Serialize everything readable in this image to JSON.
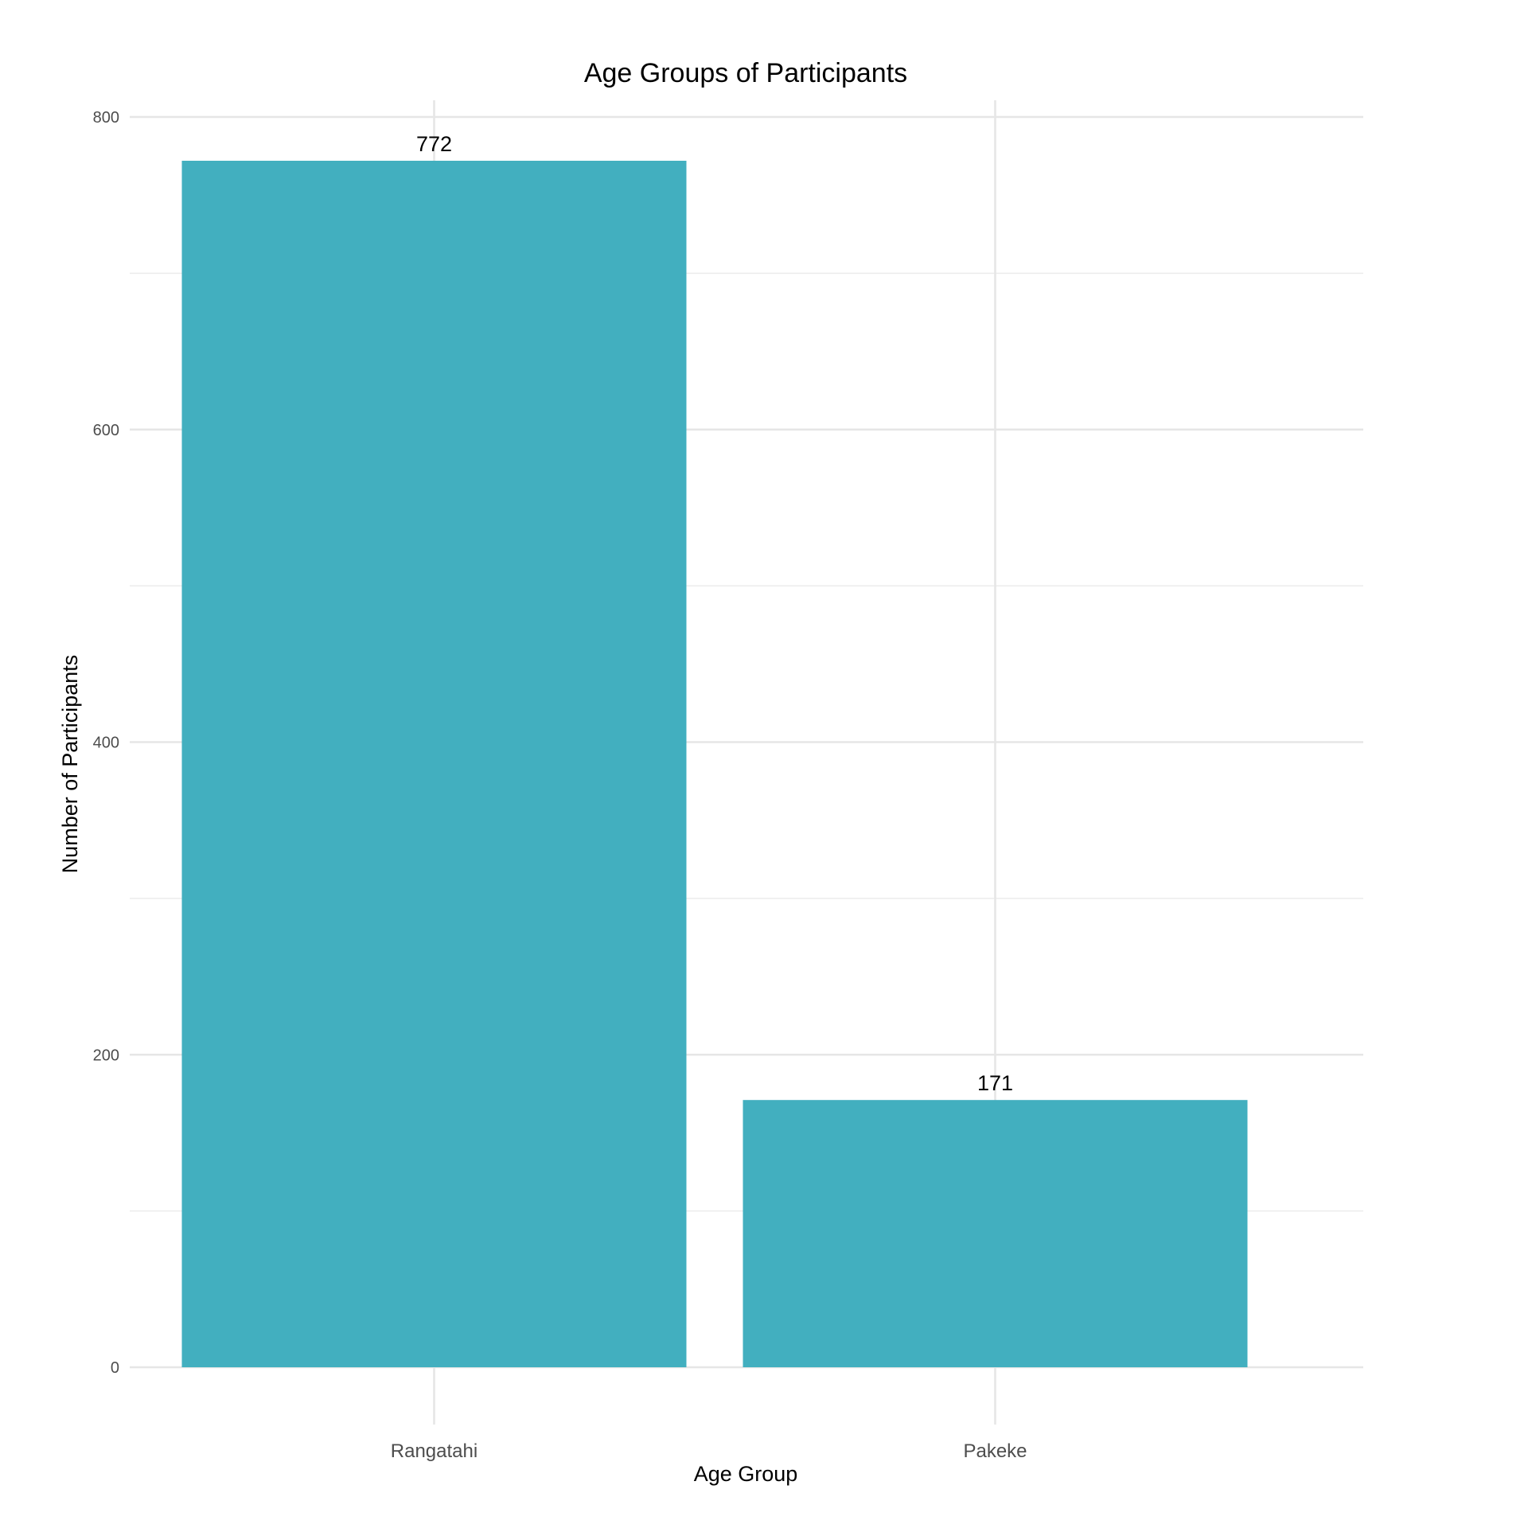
{
  "chart_data": {
    "type": "bar",
    "title": "Age Groups of Participants",
    "xlabel": "Age Group",
    "ylabel": "Number of Participants",
    "categories": [
      "Rangatahi",
      "Pakeke"
    ],
    "values": [
      772,
      171
    ],
    "data_labels": [
      "772",
      "171"
    ],
    "y_ticks": [
      0,
      200,
      400,
      600,
      800
    ],
    "y_tick_labels": [
      "0",
      "200",
      "400",
      "600",
      "800"
    ],
    "ylim": [
      0,
      800
    ],
    "grid": true,
    "legend": "none",
    "bar_color": "#42AFBF"
  }
}
